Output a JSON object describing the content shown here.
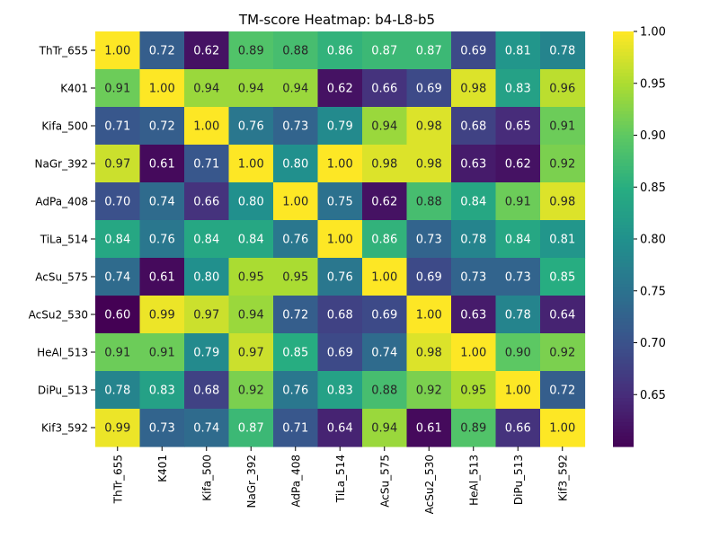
{
  "chart_data": {
    "type": "heatmap",
    "title": "TM-score Heatmap: b4-L8-b5",
    "row_labels": [
      "ThTr_655",
      "K401",
      "Kifa_500",
      "NaGr_392",
      "AdPa_408",
      "TiLa_514",
      "AcSu_575",
      "AcSu2_530",
      "HeAl_513",
      "DiPu_513",
      "Kif3_592"
    ],
    "col_labels": [
      "ThTr_655",
      "K401",
      "Kifa_500",
      "NaGr_392",
      "AdPa_408",
      "TiLa_514",
      "AcSu_575",
      "AcSu2_530",
      "HeAl_513",
      "DiPu_513",
      "Kif3_592"
    ],
    "values": [
      [
        1.0,
        0.72,
        0.62,
        0.89,
        0.88,
        0.86,
        0.87,
        0.87,
        0.69,
        0.81,
        0.78
      ],
      [
        0.91,
        1.0,
        0.94,
        0.94,
        0.94,
        0.62,
        0.66,
        0.69,
        0.98,
        0.83,
        0.96
      ],
      [
        0.71,
        0.72,
        1.0,
        0.76,
        0.73,
        0.79,
        0.94,
        0.98,
        0.68,
        0.65,
        0.91
      ],
      [
        0.97,
        0.61,
        0.71,
        1.0,
        0.8,
        1.0,
        0.98,
        0.98,
        0.63,
        0.62,
        0.92
      ],
      [
        0.7,
        0.74,
        0.66,
        0.8,
        1.0,
        0.75,
        0.62,
        0.88,
        0.84,
        0.91,
        0.98
      ],
      [
        0.84,
        0.76,
        0.84,
        0.84,
        0.76,
        1.0,
        0.86,
        0.73,
        0.78,
        0.84,
        0.81
      ],
      [
        0.74,
        0.61,
        0.8,
        0.95,
        0.95,
        0.76,
        1.0,
        0.69,
        0.73,
        0.73,
        0.85
      ],
      [
        0.6,
        0.99,
        0.97,
        0.94,
        0.72,
        0.68,
        0.69,
        1.0,
        0.63,
        0.78,
        0.64
      ],
      [
        0.91,
        0.91,
        0.79,
        0.97,
        0.85,
        0.69,
        0.74,
        0.98,
        1.0,
        0.9,
        0.92
      ],
      [
        0.78,
        0.83,
        0.68,
        0.92,
        0.76,
        0.83,
        0.88,
        0.92,
        0.95,
        1.0,
        0.72
      ],
      [
        0.99,
        0.73,
        0.74,
        0.87,
        0.71,
        0.64,
        0.94,
        0.61,
        0.89,
        0.66,
        1.0
      ]
    ],
    "value_format": "0.00",
    "colormap": "viridis",
    "color_range": [
      0.6,
      1.0
    ],
    "colorbar_ticks": [
      "0.65",
      "0.70",
      "0.75",
      "0.80",
      "0.85",
      "0.90",
      "0.95",
      "1.00"
    ],
    "grid": false,
    "legend": "colorbar-right"
  }
}
